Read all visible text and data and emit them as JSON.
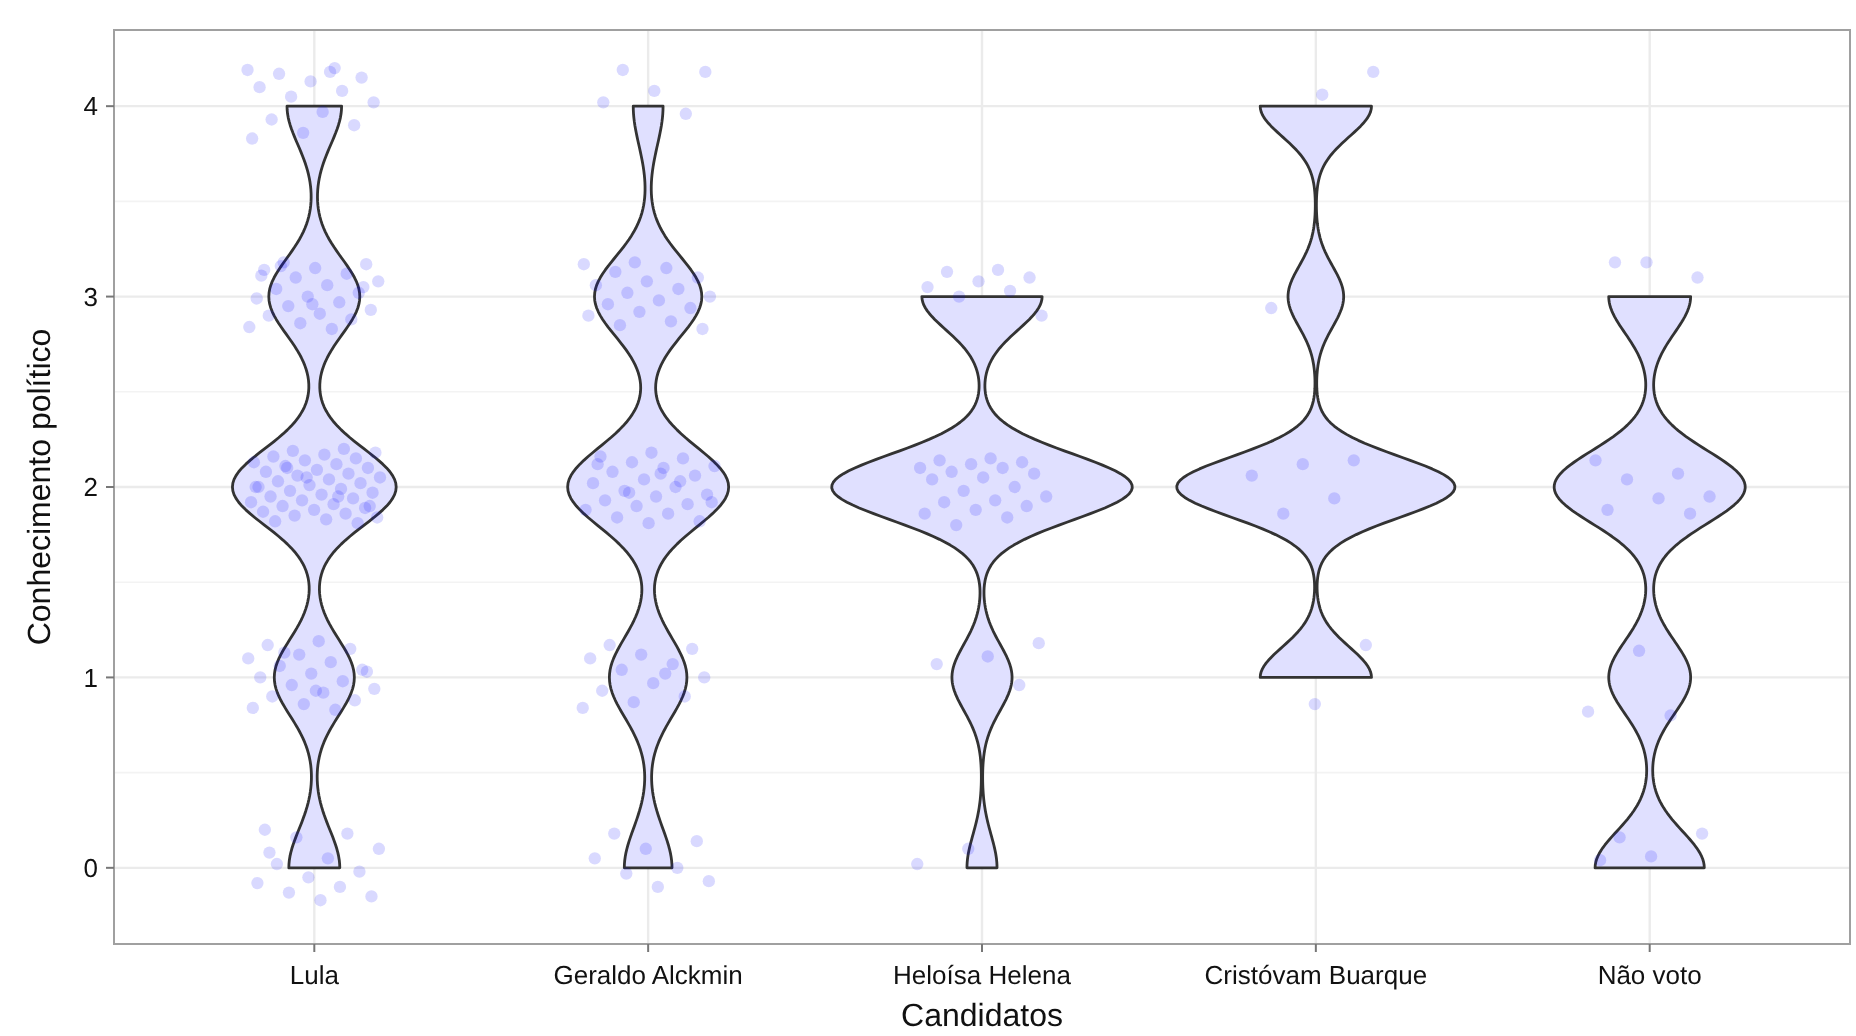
{
  "chart_data": {
    "type": "scatter",
    "xlabel": "Candidatos",
    "ylabel": "Conhecimento político",
    "categories": [
      "Lula",
      "Geraldo Alckmin",
      "Heloísa Helena",
      "Cristóvam Buarque",
      "Não voto"
    ],
    "ylim": [
      -0.4,
      4.4
    ],
    "yticks": [
      0,
      1,
      2,
      3,
      4
    ],
    "grid": true,
    "marker": "circle",
    "series": [
      {
        "color": "#0000ff",
        "x": [
          "Lula",
          "Lula",
          "Lula",
          "Lula",
          "Lula",
          "Lula",
          "Lula",
          "Lula",
          "Lula",
          "Lula",
          "Lula",
          "Lula",
          "Lula",
          "Lula",
          "Lula",
          "Lula",
          "Lula",
          "Lula",
          "Lula",
          "Lula",
          "Lula",
          "Lula",
          "Lula",
          "Lula",
          "Lula",
          "Lula",
          "Lula",
          "Lula",
          "Lula",
          "Lula",
          "Lula",
          "Lula",
          "Lula",
          "Lula",
          "Lula",
          "Lula",
          "Lula",
          "Lula",
          "Lula",
          "Lula",
          "Lula",
          "Lula",
          "Lula",
          "Lula",
          "Lula",
          "Lula",
          "Lula",
          "Lula",
          "Lula",
          "Lula",
          "Lula",
          "Lula",
          "Lula",
          "Lula",
          "Lula",
          "Lula",
          "Lula",
          "Lula",
          "Lula",
          "Lula",
          "Lula",
          "Lula",
          "Lula",
          "Lula",
          "Lula",
          "Lula",
          "Lula",
          "Lula",
          "Lula",
          "Lula",
          "Lula",
          "Lula",
          "Lula",
          "Lula",
          "Lula",
          "Lula",
          "Lula",
          "Lula",
          "Lula",
          "Lula",
          "Lula",
          "Lula",
          "Lula",
          "Lula",
          "Lula",
          "Lula",
          "Lula",
          "Lula",
          "Lula",
          "Lula",
          "Lula",
          "Lula",
          "Lula",
          "Lula",
          "Lula",
          "Lula",
          "Lula",
          "Lula",
          "Lula",
          "Lula",
          "Lula",
          "Lula",
          "Lula",
          "Lula",
          "Lula",
          "Lula",
          "Lula",
          "Lula",
          "Lula",
          "Lula",
          "Lula",
          "Lula",
          "Lula",
          "Lula",
          "Lula",
          "Lula",
          "Lula",
          "Lula",
          "Lula",
          "Lula",
          "Lula"
        ],
        "values": [
          4.19,
          4.18,
          4.17,
          4.15,
          4.13,
          4.1,
          4.08,
          4.05,
          4.02,
          3.97,
          3.93,
          3.9,
          3.86,
          3.83,
          4.2,
          3.18,
          3.17,
          3.15,
          3.14,
          3.12,
          3.1,
          3.08,
          3.06,
          3.04,
          3.02,
          3.0,
          2.99,
          2.97,
          2.95,
          2.93,
          2.91,
          2.9,
          2.88,
          2.86,
          2.84,
          2.83,
          3.16,
          3.05,
          2.96,
          3.11,
          2.2,
          2.19,
          2.18,
          2.17,
          2.16,
          2.15,
          2.14,
          2.13,
          2.12,
          2.11,
          2.1,
          2.09,
          2.08,
          2.07,
          2.06,
          2.05,
          2.04,
          2.03,
          2.02,
          2.01,
          2.0,
          1.99,
          1.98,
          1.97,
          1.96,
          1.95,
          1.94,
          1.93,
          1.92,
          1.91,
          1.9,
          1.89,
          1.88,
          1.87,
          1.86,
          1.85,
          1.84,
          1.83,
          1.82,
          1.81,
          2.05,
          2.0,
          1.95,
          2.1,
          1.9,
          1.19,
          1.17,
          1.15,
          1.12,
          1.1,
          1.08,
          1.06,
          1.04,
          1.02,
          1.0,
          0.98,
          0.96,
          0.94,
          0.92,
          0.9,
          0.88,
          0.86,
          0.84,
          0.83,
          1.13,
          1.03,
          0.93,
          0.2,
          0.18,
          0.16,
          0.1,
          0.05,
          0.02,
          -0.02,
          -0.05,
          -0.08,
          -0.1,
          -0.13,
          -0.15,
          -0.17,
          0.08
        ]
      },
      {
        "color": "#0000ff",
        "x": [
          "Geraldo Alckmin",
          "Geraldo Alckmin",
          "Geraldo Alckmin",
          "Geraldo Alckmin",
          "Geraldo Alckmin",
          "Geraldo Alckmin",
          "Geraldo Alckmin",
          "Geraldo Alckmin",
          "Geraldo Alckmin",
          "Geraldo Alckmin",
          "Geraldo Alckmin",
          "Geraldo Alckmin",
          "Geraldo Alckmin",
          "Geraldo Alckmin",
          "Geraldo Alckmin",
          "Geraldo Alckmin",
          "Geraldo Alckmin",
          "Geraldo Alckmin",
          "Geraldo Alckmin",
          "Geraldo Alckmin",
          "Geraldo Alckmin",
          "Geraldo Alckmin",
          "Geraldo Alckmin",
          "Geraldo Alckmin",
          "Geraldo Alckmin",
          "Geraldo Alckmin",
          "Geraldo Alckmin",
          "Geraldo Alckmin",
          "Geraldo Alckmin",
          "Geraldo Alckmin",
          "Geraldo Alckmin",
          "Geraldo Alckmin",
          "Geraldo Alckmin",
          "Geraldo Alckmin",
          "Geraldo Alckmin",
          "Geraldo Alckmin",
          "Geraldo Alckmin",
          "Geraldo Alckmin",
          "Geraldo Alckmin",
          "Geraldo Alckmin",
          "Geraldo Alckmin",
          "Geraldo Alckmin",
          "Geraldo Alckmin",
          "Geraldo Alckmin",
          "Geraldo Alckmin",
          "Geraldo Alckmin",
          "Geraldo Alckmin",
          "Geraldo Alckmin",
          "Geraldo Alckmin",
          "Geraldo Alckmin",
          "Geraldo Alckmin",
          "Geraldo Alckmin",
          "Geraldo Alckmin",
          "Geraldo Alckmin",
          "Geraldo Alckmin",
          "Geraldo Alckmin",
          "Geraldo Alckmin",
          "Geraldo Alckmin",
          "Geraldo Alckmin",
          "Geraldo Alckmin",
          "Geraldo Alckmin",
          "Geraldo Alckmin",
          "Geraldo Alckmin",
          "Geraldo Alckmin",
          "Geraldo Alckmin",
          "Geraldo Alckmin",
          "Geraldo Alckmin",
          "Geraldo Alckmin",
          "Geraldo Alckmin",
          "Geraldo Alckmin",
          "Geraldo Alckmin"
        ],
        "values": [
          4.19,
          4.18,
          4.08,
          4.02,
          3.96,
          3.18,
          3.17,
          3.15,
          3.13,
          3.1,
          3.08,
          3.06,
          3.04,
          3.02,
          3.0,
          2.98,
          2.96,
          2.94,
          2.92,
          2.9,
          2.87,
          2.85,
          2.83,
          2.18,
          2.16,
          2.15,
          2.13,
          2.11,
          2.1,
          2.08,
          2.06,
          2.04,
          2.02,
          2.0,
          1.98,
          1.96,
          1.95,
          1.93,
          1.91,
          1.9,
          1.88,
          1.86,
          1.84,
          1.82,
          1.81,
          2.12,
          2.03,
          1.97,
          1.92,
          2.07,
          1.17,
          1.15,
          1.12,
          1.1,
          1.07,
          1.04,
          1.0,
          0.97,
          0.93,
          0.9,
          0.87,
          0.84,
          1.02,
          0.18,
          0.14,
          0.1,
          0.05,
          0.0,
          -0.03,
          -0.07,
          -0.1
        ]
      },
      {
        "color": "#0000ff",
        "x": [
          "Heloísa Helena",
          "Heloísa Helena",
          "Heloísa Helena",
          "Heloísa Helena",
          "Heloísa Helena",
          "Heloísa Helena",
          "Heloísa Helena",
          "Heloísa Helena",
          "Heloísa Helena",
          "Heloísa Helena",
          "Heloísa Helena",
          "Heloísa Helena",
          "Heloísa Helena",
          "Heloísa Helena",
          "Heloísa Helena",
          "Heloísa Helena",
          "Heloísa Helena",
          "Heloísa Helena",
          "Heloísa Helena",
          "Heloísa Helena",
          "Heloísa Helena",
          "Heloísa Helena",
          "Heloísa Helena",
          "Heloísa Helena",
          "Heloísa Helena",
          "Heloísa Helena",
          "Heloísa Helena",
          "Heloísa Helena",
          "Heloísa Helena",
          "Heloísa Helena",
          "Heloísa Helena",
          "Heloísa Helena",
          "Heloísa Helena",
          "Heloísa Helena"
        ],
        "values": [
          3.14,
          3.13,
          3.1,
          3.08,
          3.05,
          3.03,
          3.0,
          2.9,
          2.15,
          2.14,
          2.13,
          2.12,
          2.1,
          2.1,
          2.08,
          2.07,
          2.05,
          2.04,
          2.0,
          1.98,
          1.95,
          1.93,
          1.92,
          1.9,
          1.88,
          1.86,
          1.84,
          1.8,
          1.18,
          1.11,
          1.07,
          0.96,
          0.1,
          0.02
        ]
      },
      {
        "color": "#0000ff",
        "x": [
          "Cristóvam Buarque",
          "Cristóvam Buarque",
          "Cristóvam Buarque",
          "Cristóvam Buarque",
          "Cristóvam Buarque",
          "Cristóvam Buarque",
          "Cristóvam Buarque",
          "Cristóvam Buarque",
          "Cristóvam Buarque",
          "Cristóvam Buarque"
        ],
        "values": [
          4.18,
          4.06,
          2.94,
          2.14,
          2.12,
          2.06,
          1.94,
          1.86,
          1.17,
          0.86
        ]
      },
      {
        "color": "#0000ff",
        "x": [
          "Não voto",
          "Não voto",
          "Não voto",
          "Não voto",
          "Não voto",
          "Não voto",
          "Não voto",
          "Não voto",
          "Não voto",
          "Não voto",
          "Não voto",
          "Não voto",
          "Não voto",
          "Não voto",
          "Não voto",
          "Não voto",
          "Não voto"
        ],
        "values": [
          3.18,
          3.1,
          3.18,
          2.14,
          2.07,
          2.04,
          1.95,
          1.94,
          1.88,
          1.86,
          1.14,
          0.82,
          0.8,
          0.16,
          0.18,
          0.06,
          0.04
        ]
      }
    ]
  }
}
